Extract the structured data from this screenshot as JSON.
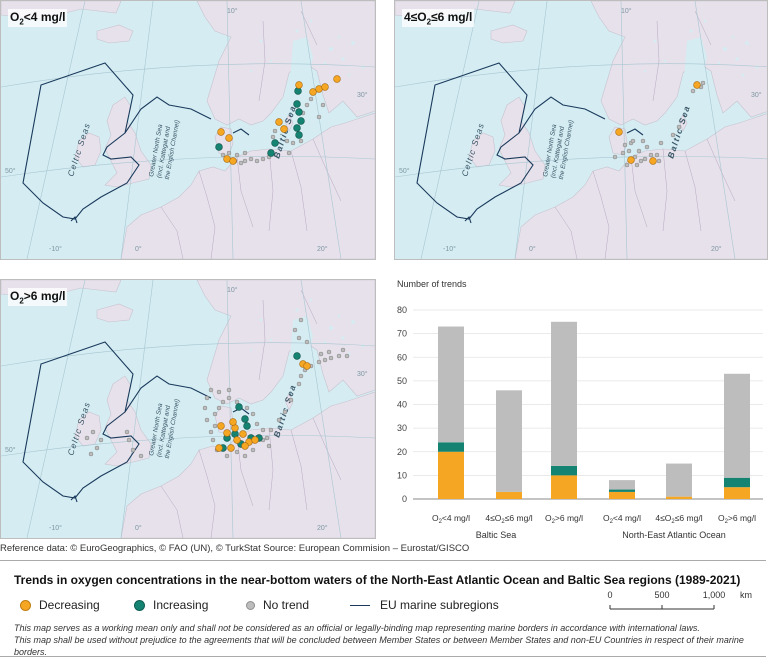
{
  "maps": {
    "panel1": {
      "title_main": "O",
      "title_sub": "2",
      "title_rest": "<4 mg/l"
    },
    "panel2": {
      "title_main": "4≤O",
      "title_sub": "2",
      "title_rest": "≤6 mg/l"
    },
    "panel3": {
      "title_main": "O",
      "title_sub": "2",
      "title_rest": ">6 mg/l"
    },
    "labels": {
      "celtic": "Celtic Seas",
      "north_sea_1": "Greater North Sea",
      "north_sea_2": "(incl. Kattegat and",
      "north_sea_3": "the English Channel)",
      "baltic": "Baltic Sea"
    },
    "graticule": {
      "lat_50": "50°",
      "lon_m10": "-10°",
      "lon_0": "0°",
      "lon_10": "10°",
      "lon_20": "20°",
      "lon_30": "30°"
    }
  },
  "chart_data": {
    "type": "bar",
    "ylabel": "Number of trends",
    "ylim": [
      0,
      80
    ],
    "yticks": [
      0,
      10,
      20,
      30,
      40,
      50,
      60,
      70,
      80
    ],
    "groups": [
      "Baltic Sea",
      "North-East Atlantic Ocean"
    ],
    "categories": [
      "O2<4 mg/l",
      "4≤O2≤6 mg/l",
      "O2>6 mg/l",
      "O2<4 mg/l",
      "4≤O2≤6 mg/l",
      "O2>6 mg/l"
    ],
    "category_labels": [
      {
        "a": "O",
        "s": "2",
        "b": "<4 mg/l"
      },
      {
        "a": "4≤O",
        "s": "2",
        "b": "≤6 mg/l"
      },
      {
        "a": "O",
        "s": "2",
        "b": ">6 mg/l"
      },
      {
        "a": "O",
        "s": "2",
        "b": "<4 mg/l"
      },
      {
        "a": "4≤O",
        "s": "2",
        "b": "≤6 mg/l"
      },
      {
        "a": "O",
        "s": "2",
        "b": ">6 mg/l"
      }
    ],
    "series": [
      {
        "name": "Decreasing",
        "color": "#f5a623",
        "values": [
          20,
          3,
          10,
          3,
          1,
          5
        ]
      },
      {
        "name": "Increasing",
        "color": "#158372",
        "values": [
          4,
          0,
          4,
          1,
          0,
          4
        ]
      },
      {
        "name": "No trend",
        "color": "#bdbdbd",
        "values": [
          49,
          43,
          61,
          4,
          14,
          44
        ]
      }
    ]
  },
  "reference": "Reference data: © EuroGeographics, © FAO (UN), © TurkStat Source: European Commision – Eurostat/GISCO",
  "legend": {
    "title": "Trends in oxygen concentrations in the near-bottom waters of the North-East Atlantic Ocean and Baltic Sea regions (1989-2021)",
    "decreasing": "Decreasing",
    "increasing": "Increasing",
    "no_trend": "No trend",
    "subregions": "EU marine subregions",
    "scale_0": "0",
    "scale_500": "500",
    "scale_1000": "1,000",
    "scale_unit": "km",
    "colors": {
      "decreasing": "#f5a623",
      "increasing": "#158372",
      "no_trend": "#bdbdbd",
      "subregion_line": "#1a3a5c"
    }
  },
  "disclaimer": {
    "line1": "This map serves as a working mean only and shall not be considered as an official or legally-binding map representing marine borders in accordance with international laws.",
    "line2": "This map shall be used without prejudice to the agreements that will be concluded between Member States or between Member States and non-EU Countries in respect of their marine borders."
  }
}
